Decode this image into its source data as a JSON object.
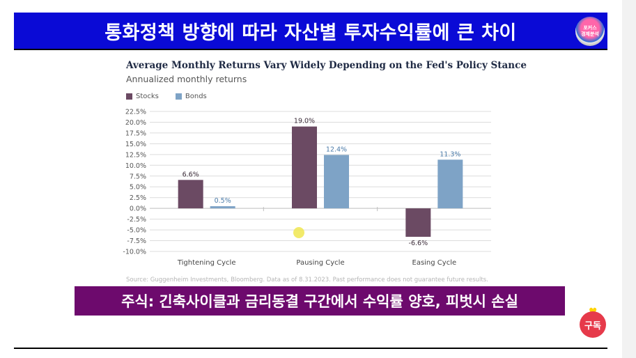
{
  "banner": {
    "title": "통화정책 방향에 따라 자산별 투자수익률에 큰 차이"
  },
  "logo": {
    "line1": "포커스",
    "line2": "경제분석"
  },
  "caption": {
    "text": "주식: 긴축사이클과 금리동결 구간에서 수익률 양호, 피벗시 손실"
  },
  "subscribe": {
    "label": "구독"
  },
  "chart_data": {
    "type": "bar",
    "title": "Average Monthly Returns Vary Widely Depending on the Fed's Policy Stance",
    "subtitle": "Annualized monthly returns",
    "categories": [
      "Tightening Cycle",
      "Pausing Cycle",
      "Easing Cycle"
    ],
    "series": [
      {
        "name": "Stocks",
        "color": "#6b4a63",
        "values": [
          6.6,
          19.0,
          -6.6
        ],
        "labels": [
          "6.6%",
          "19.0%",
          "-6.6%"
        ]
      },
      {
        "name": "Bonds",
        "color": "#7ea3c6",
        "values": [
          0.5,
          12.4,
          11.3
        ],
        "labels": [
          "0.5%",
          "12.4%",
          "11.3%"
        ]
      }
    ],
    "yticks": [
      "22.5%",
      "20.0%",
      "17.5%",
      "15.0%",
      "12.5%",
      "10.0%",
      "7.5%",
      "5.0%",
      "2.5%",
      "0.0%",
      "-2.5%",
      "-5.0%",
      "-7.5%",
      "-10.0%"
    ],
    "ylim": [
      -10,
      22.5
    ],
    "grid": true,
    "legend_position": "top-left",
    "source": "Source: Guggenheim Investments, Bloomberg. Data as of 8.31.2023. Past performance does not guarantee future results."
  }
}
